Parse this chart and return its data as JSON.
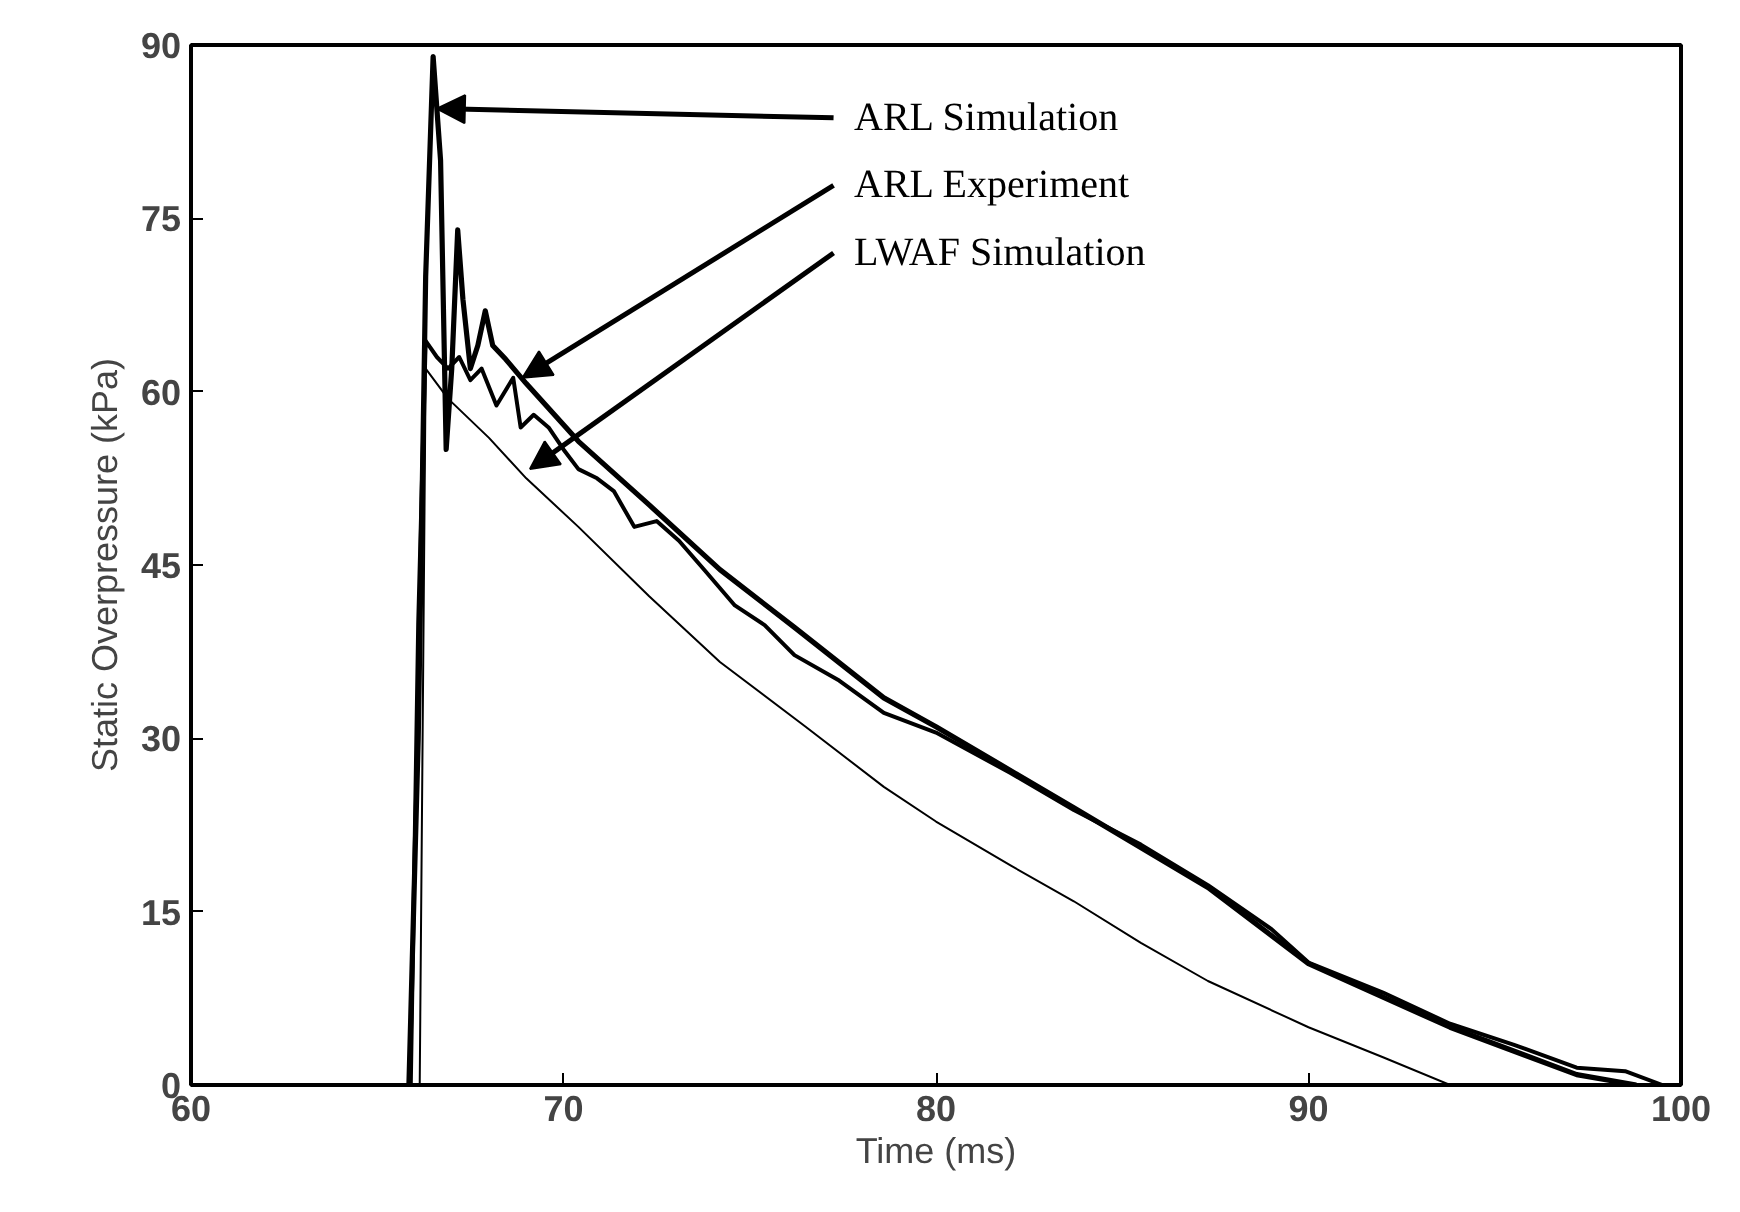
{
  "chart_data": {
    "type": "line",
    "xlabel": "Time (ms)",
    "ylabel": "Static Overpressure (kPa)",
    "xlim": [
      60,
      100
    ],
    "ylim": [
      0,
      90
    ],
    "xticks": [
      60,
      70,
      80,
      90,
      100
    ],
    "yticks": [
      0,
      15,
      30,
      45,
      60,
      75,
      90
    ],
    "grid": false,
    "marker": "none",
    "line_style": "solid",
    "series": [
      {
        "color": "#000000",
        "x": [
          65.85,
          66.1,
          66.3,
          66.5,
          66.7,
          66.85,
          67.0,
          67.16,
          67.3,
          67.5,
          67.7,
          67.9,
          68.1,
          68.45,
          69.0,
          70.4,
          72.3,
          74.2,
          76.2,
          78.6,
          80,
          83.7,
          87.3,
          90,
          93.8,
          97.2,
          98.8
        ],
        "values": [
          0,
          30,
          70,
          89,
          80,
          55,
          62,
          74,
          68,
          62,
          64,
          67,
          64,
          62.8,
          60.7,
          55.7,
          50.2,
          44.6,
          39.6,
          33.5,
          31,
          24,
          17.1,
          10.5,
          5,
          0.9,
          0
        ]
      },
      {
        "color": "#000000",
        "x": [
          65.9,
          66.1,
          66.3,
          66.6,
          66.9,
          67.2,
          67.5,
          67.8,
          68.2,
          68.65,
          68.85,
          69.2,
          69.6,
          70.0,
          70.4,
          70.9,
          71.35,
          71.9,
          72.5,
          73.1,
          73.8,
          74.6,
          75.4,
          76.2,
          77.4,
          78.6,
          80,
          82,
          83.7,
          85.5,
          87.3,
          89,
          90,
          92,
          93.8,
          95.5,
          97.2,
          98.5,
          99.5
        ],
        "values": [
          0,
          40,
          64.4,
          63,
          62,
          63,
          61,
          62,
          58.8,
          61.2,
          56.9,
          58,
          56.9,
          55,
          53.3,
          52.5,
          51.4,
          48.3,
          48.8,
          47.1,
          44.5,
          41.5,
          39.8,
          37.2,
          35,
          32.2,
          30.5,
          27,
          23.8,
          20.8,
          17.3,
          13.5,
          10.6,
          8,
          5.3,
          3.5,
          1.5,
          1.2,
          0
        ]
      },
      {
        "color": "#000000",
        "x": [
          66.14,
          66.3,
          66.9,
          68,
          69,
          70.4,
          72.3,
          74.2,
          76.5,
          78.6,
          80,
          82,
          83.7,
          85.5,
          87.3,
          90,
          92,
          93.8
        ],
        "values": [
          0,
          62,
          59.4,
          56,
          52.5,
          48.3,
          42.3,
          36.6,
          31,
          25.8,
          22.8,
          19,
          15.9,
          12.3,
          9,
          5,
          2.4,
          0
        ]
      }
    ],
    "annotations": [
      {
        "text": "ARL Simulation",
        "x": 66.6,
        "y": 84.5
      },
      {
        "text": "ARL Experiment",
        "x": 68.9,
        "y": 61.2
      },
      {
        "text": "LWAF Simulation",
        "x": 69.1,
        "y": 53.3
      }
    ]
  }
}
